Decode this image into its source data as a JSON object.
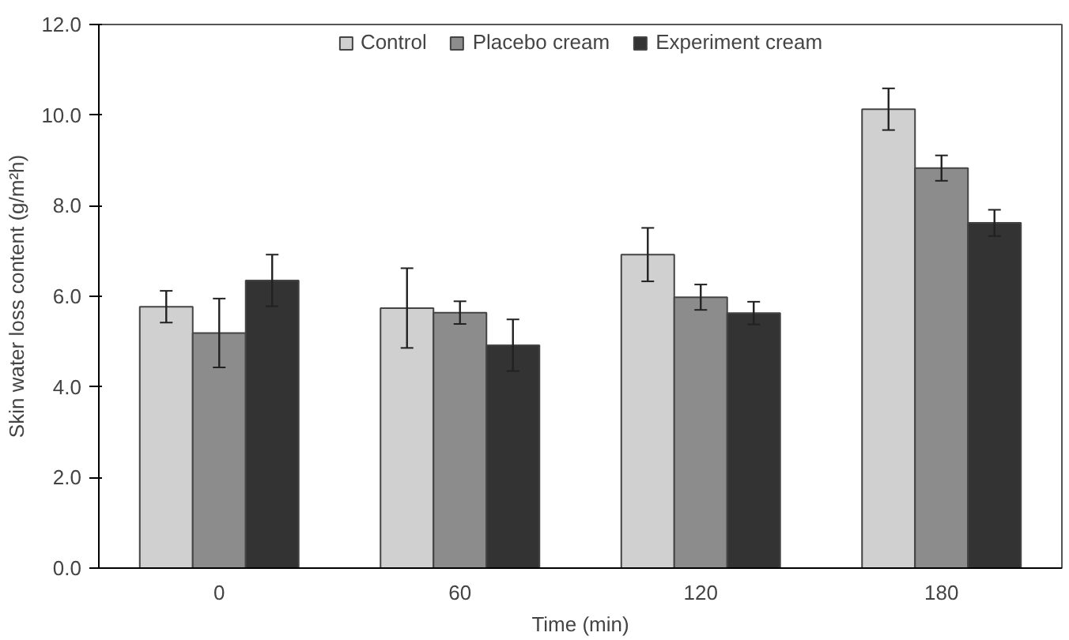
{
  "chart_data": {
    "type": "bar",
    "xlabel": "Time (min)",
    "ylabel": "Skin water loss content (g/m²h)",
    "categories": [
      "0",
      "60",
      "120",
      "180"
    ],
    "series": [
      {
        "name": "Control",
        "color": "#d0d0d0",
        "values": [
          5.77,
          5.74,
          6.92,
          10.13
        ],
        "errors": [
          0.35,
          0.88,
          0.59,
          0.46
        ]
      },
      {
        "name": "Placebo cream",
        "color": "#8c8c8c",
        "values": [
          5.19,
          5.64,
          5.98,
          8.83
        ],
        "errors": [
          0.76,
          0.25,
          0.28,
          0.28
        ]
      },
      {
        "name": "Experiment cream",
        "color": "#333333",
        "values": [
          6.35,
          4.92,
          5.63,
          7.62
        ],
        "errors": [
          0.57,
          0.57,
          0.25,
          0.29
        ]
      }
    ],
    "ylim": [
      0,
      12
    ],
    "yticks": [
      {
        "value": 0,
        "label": "0.0"
      },
      {
        "value": 2,
        "label": "2.0"
      },
      {
        "value": 4,
        "label": "4.0"
      },
      {
        "value": 6,
        "label": "6.0"
      },
      {
        "value": 8,
        "label": "8.0"
      },
      {
        "value": 10,
        "label": "10.0"
      },
      {
        "value": 12,
        "label": "12.0"
      }
    ],
    "grid": false,
    "legend": "top"
  }
}
